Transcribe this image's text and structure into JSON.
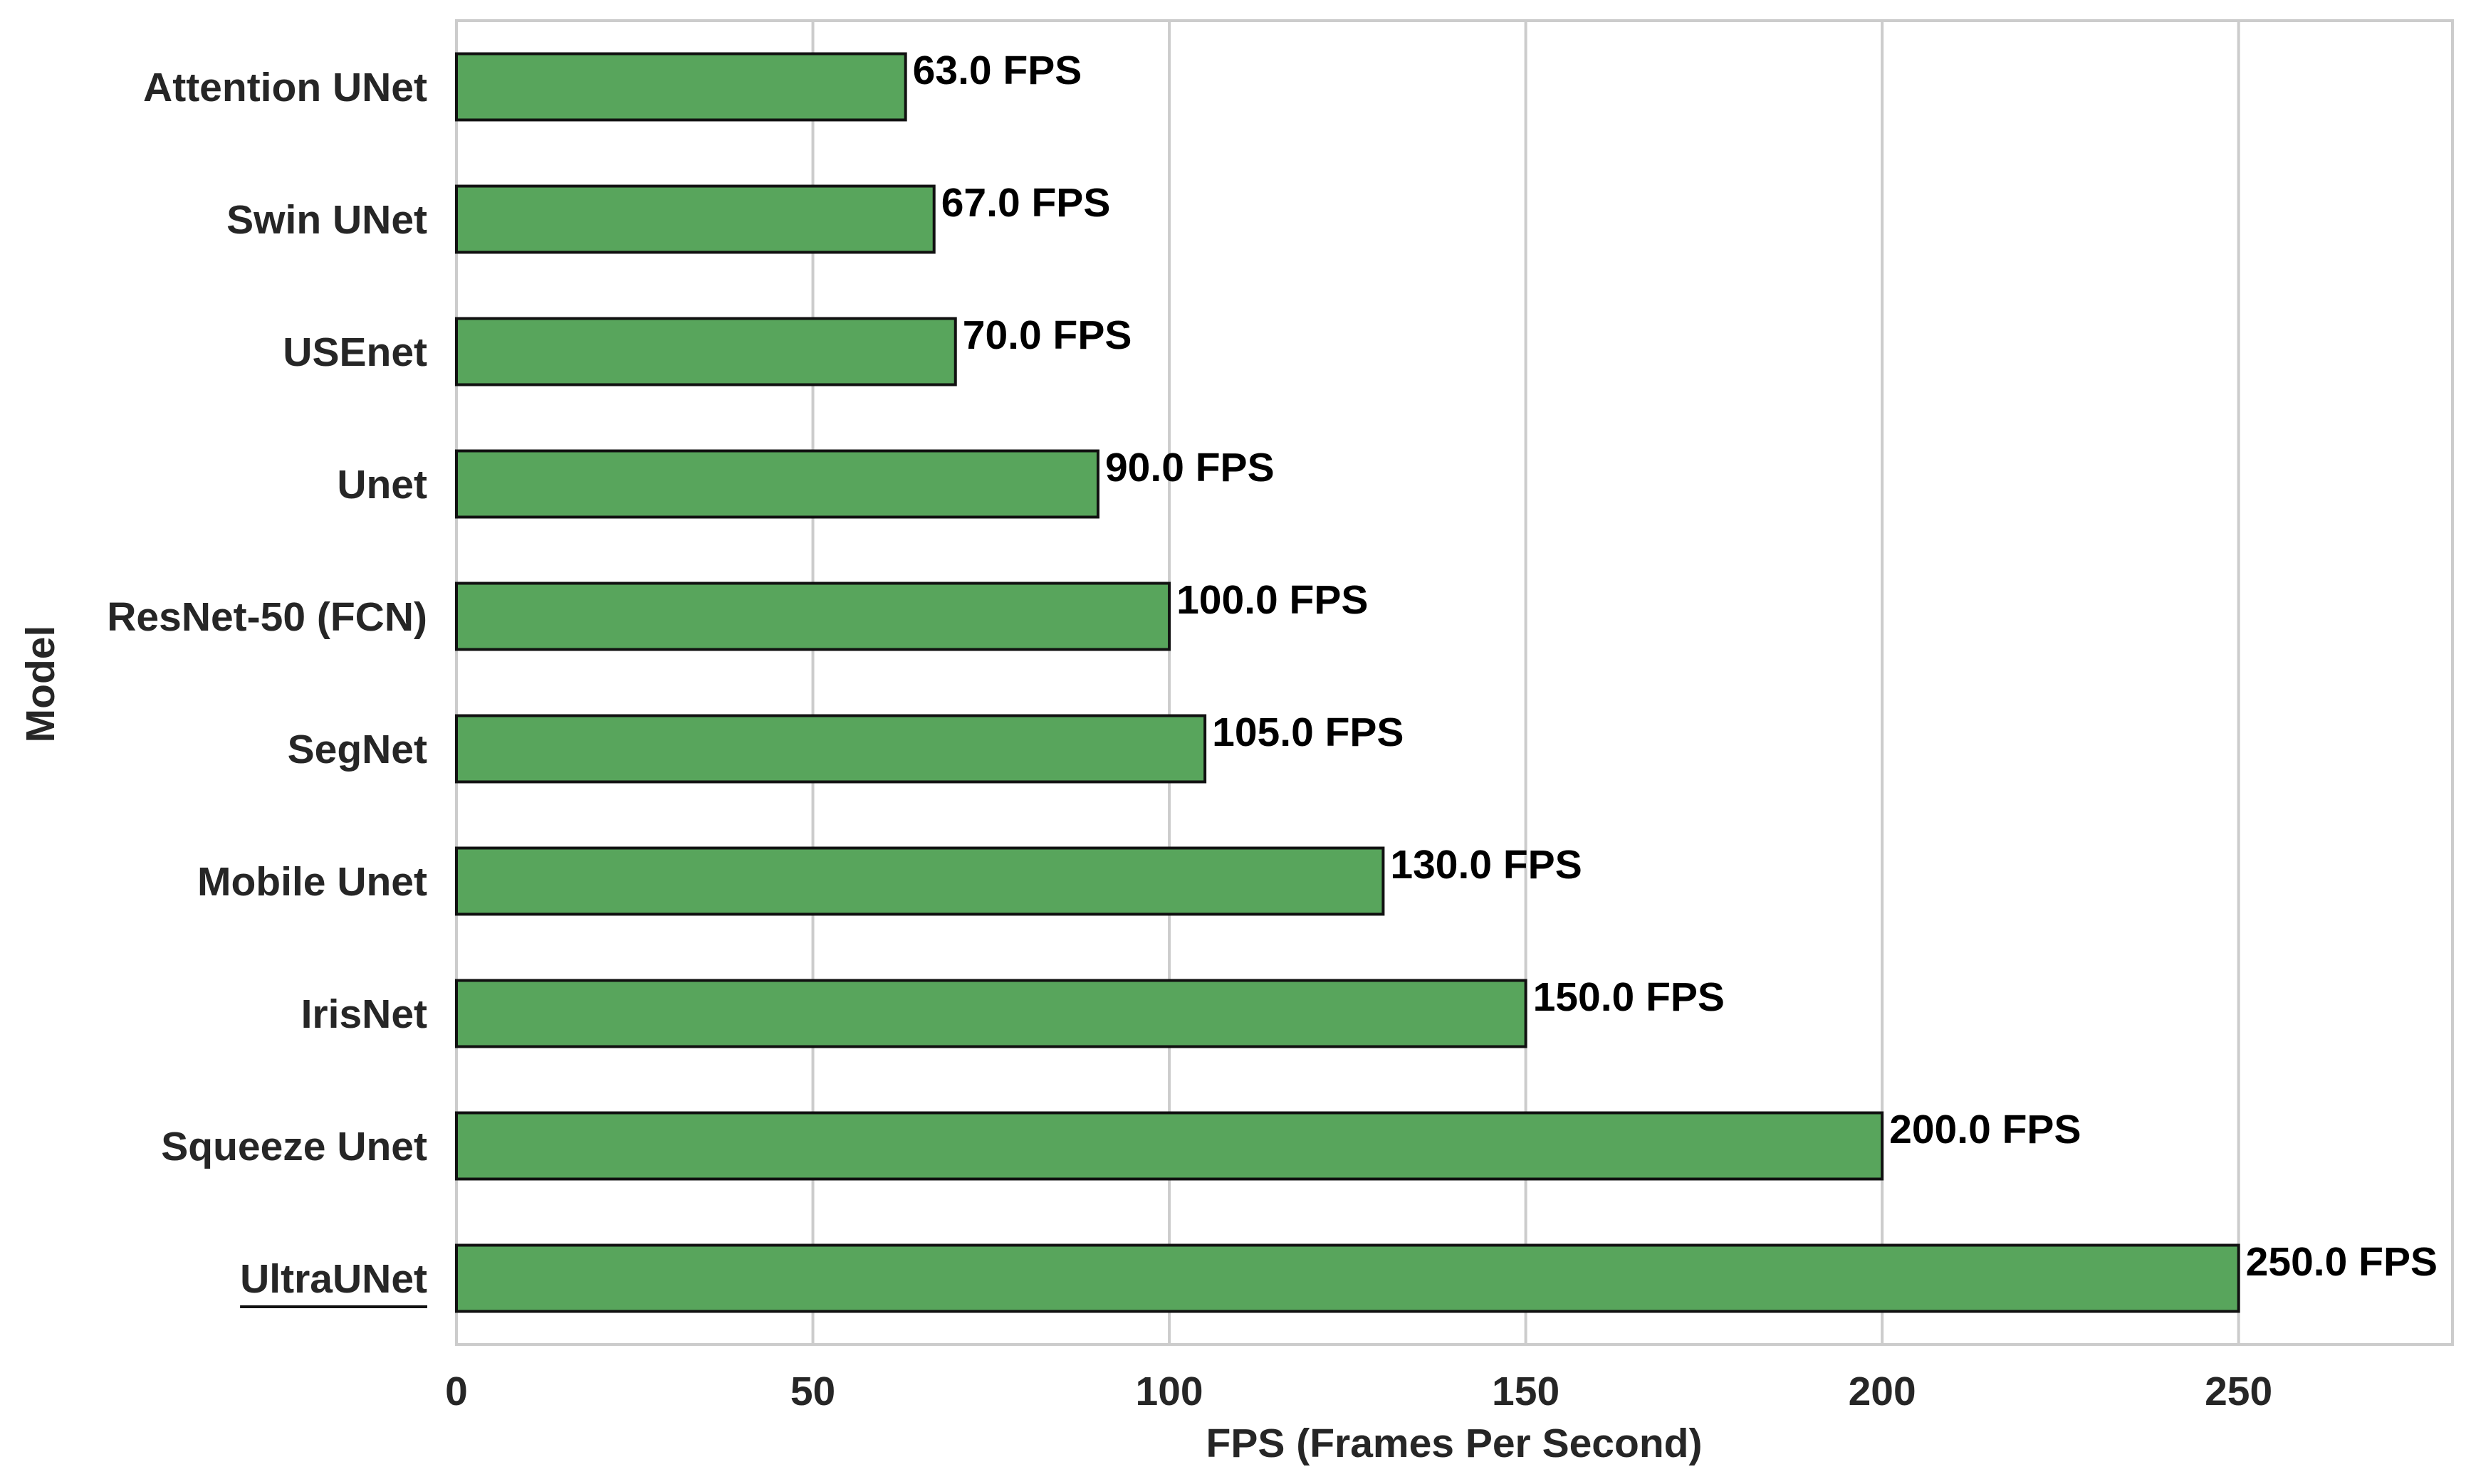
{
  "chart_data": {
    "type": "bar",
    "orientation": "horizontal",
    "categories": [
      "Attention UNet",
      "Swin UNet",
      "USEnet",
      "Unet",
      "ResNet-50 (FCN)",
      "SegNet",
      "Mobile Unet",
      "IrisNet",
      "Squeeze Unet",
      "UltraUNet"
    ],
    "values": [
      63.0,
      67.0,
      70.0,
      90.0,
      100.0,
      105.0,
      130.0,
      150.0,
      200.0,
      250.0
    ],
    "data_labels": [
      "63.0 FPS",
      "67.0 FPS",
      "70.0 FPS",
      "90.0 FPS",
      "100.0 FPS",
      "105.0 FPS",
      "130.0 FPS",
      "150.0 FPS",
      "200.0 FPS",
      "250.0 FPS"
    ],
    "highlighted_category": "UltraUNet",
    "xlabel": "FPS (Frames Per Second)",
    "ylabel": "Model",
    "xlim": [
      0,
      280
    ],
    "xticks": [
      0,
      50,
      100,
      150,
      200,
      250
    ],
    "xtick_labels": [
      "0",
      "50",
      "100",
      "150",
      "200",
      "250"
    ],
    "grid": "vertical",
    "legend": "none",
    "colors": {
      "bar_fill": "#58a55c",
      "bar_edge": "#111111",
      "grid": "#cccccc",
      "frame": "#cccccc"
    }
  }
}
